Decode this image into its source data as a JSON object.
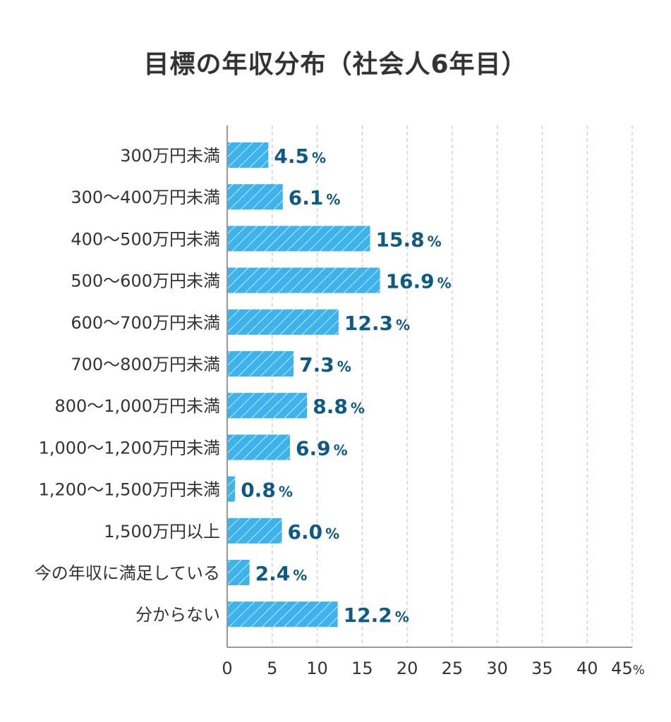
{
  "title": "目標の年収分布（社会人6年目）",
  "chart_data": {
    "type": "bar",
    "orientation": "horizontal",
    "categories": [
      "300万円未満",
      "300〜400万円未満",
      "400〜500万円未満",
      "500〜600万円未満",
      "600〜700万円未満",
      "700〜800万円未満",
      "800〜1,000万円未満",
      "1,000〜1,200万円未満",
      "1,200〜1,500万円未満",
      "1,500万円以上",
      "今の年収に満足している",
      "分からない"
    ],
    "values": [
      4.5,
      6.1,
      15.8,
      16.9,
      12.3,
      7.3,
      8.8,
      6.9,
      0.8,
      6.0,
      2.4,
      12.2
    ],
    "value_labels": [
      "4.5",
      "6.1",
      "15.8",
      "16.9",
      "12.3",
      "7.3",
      "8.8",
      "6.9",
      "0.8",
      "6.0",
      "2.4",
      "12.2"
    ],
    "value_unit": "%",
    "xlim": [
      0,
      45
    ],
    "x_ticks": [
      "0",
      "5",
      "10",
      "15",
      "20",
      "25",
      "30",
      "35",
      "40",
      "45"
    ],
    "x_tick_unit": "%",
    "grid": "vertical dashed",
    "bar_fill": "diagonal hatch",
    "colors": {
      "bar": "#3db3ee",
      "bar_hatch": "#ffffff",
      "value_text": "#0d5a86",
      "grid": "#c8c8c8",
      "axis": "#999999",
      "text": "#333333"
    }
  }
}
